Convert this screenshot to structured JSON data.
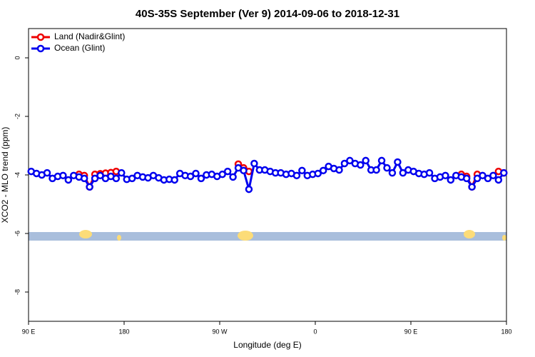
{
  "chart_data": {
    "type": "line",
    "title": "40S-35S September (Ver 9)   2014-09-06 to 2018-12-31",
    "x_label": "Longitude (deg E)",
    "y_label": "XCO2 - MLO trend (ppm)",
    "xlim": [
      90,
      540
    ],
    "xticks": [
      {
        "value": 90,
        "label": "90 E"
      },
      180,
      {
        "value": 270,
        "label": "90 W"
      },
      {
        "value": 360,
        "label": "0"
      },
      {
        "value": 450,
        "label": "90 E"
      },
      {
        "value": 540,
        "label": "180"
      }
    ],
    "ylim": [
      -9,
      1
    ],
    "yticks": [
      0,
      -2,
      -4,
      -6,
      -8
    ],
    "legend": "top-left",
    "x": [
      92.5,
      97.5,
      102.5,
      107.5,
      112.5,
      117.5,
      122.5,
      127.5,
      132.5,
      137.5,
      142.5,
      147.5,
      152.5,
      157.5,
      162.5,
      167.5,
      172.5,
      177.5,
      182.5,
      187.5,
      192.5,
      197.5,
      202.5,
      207.5,
      212.5,
      217.5,
      222.5,
      227.5,
      232.5,
      237.5,
      242.5,
      247.5,
      252.5,
      257.5,
      262.5,
      267.5,
      272.5,
      277.5,
      282.5,
      287.5,
      292.5,
      297.5,
      302.5,
      307.5,
      312.5,
      317.5,
      322.5,
      327.5,
      332.5,
      337.5,
      342.5,
      347.5,
      352.5,
      357.5,
      362.5,
      367.5,
      372.5,
      377.5,
      382.5,
      387.5,
      392.5,
      397.5,
      402.5,
      407.5,
      412.5,
      417.5,
      422.5,
      427.5,
      432.5,
      437.5,
      442.5,
      447.5,
      452.5,
      457.5,
      462.5,
      467.5,
      472.5,
      477.5,
      482.5,
      487.5,
      492.5,
      497.5,
      502.5,
      507.5,
      512.5,
      517.5,
      522.5,
      527.5,
      532.5,
      537.5
    ],
    "series": [
      {
        "name": "Land (Nadir&Glint)",
        "color": "#ee0000",
        "values": [
          null,
          null,
          null,
          null,
          null,
          null,
          null,
          null,
          null,
          -3.98,
          -4.02,
          -4.41,
          -3.98,
          -3.96,
          -3.94,
          -3.92,
          -3.88,
          null,
          null,
          null,
          null,
          null,
          null,
          null,
          null,
          null,
          null,
          null,
          null,
          null,
          null,
          null,
          null,
          null,
          null,
          null,
          null,
          null,
          null,
          -3.63,
          -3.76,
          -3.88,
          null,
          null,
          null,
          null,
          null,
          null,
          null,
          null,
          null,
          null,
          null,
          null,
          null,
          null,
          null,
          null,
          null,
          null,
          null,
          null,
          null,
          null,
          null,
          null,
          null,
          null,
          null,
          null,
          null,
          null,
          null,
          null,
          null,
          null,
          null,
          null,
          null,
          null,
          null,
          -3.98,
          -4.05,
          -4.41,
          -3.98,
          null,
          null,
          null,
          -3.88,
          -3.93
        ]
      },
      {
        "name": "Ocean (Glint)",
        "color": "#0000ee",
        "values": [
          -3.88,
          -3.95,
          -4.0,
          -3.93,
          -4.12,
          -4.05,
          -4.02,
          -4.17,
          -4.02,
          -4.07,
          -4.12,
          -4.41,
          -4.12,
          -4.02,
          -4.12,
          -4.05,
          -4.12,
          -3.93,
          -4.15,
          -4.12,
          -4.02,
          -4.07,
          -4.1,
          -4.02,
          -4.1,
          -4.17,
          -4.15,
          -4.17,
          -3.95,
          -4.02,
          -4.05,
          -3.95,
          -4.12,
          -4.0,
          -3.98,
          -4.05,
          -3.98,
          -3.88,
          -4.07,
          -3.76,
          -3.85,
          -4.49,
          -3.61,
          -3.83,
          -3.83,
          -3.88,
          -3.93,
          -3.93,
          -3.98,
          -3.95,
          -4.02,
          -3.85,
          -4.02,
          -3.98,
          -3.95,
          -3.85,
          -3.71,
          -3.78,
          -3.83,
          -3.61,
          -3.51,
          -3.61,
          -3.66,
          -3.51,
          -3.83,
          -3.83,
          -3.51,
          -3.76,
          -3.93,
          -3.56,
          -3.93,
          -3.83,
          -3.88,
          -3.95,
          -3.98,
          -3.93,
          -4.12,
          -4.07,
          -4.02,
          -4.17,
          -4.02,
          -4.07,
          -4.12,
          -4.41,
          -4.12,
          -4.02,
          -4.12,
          -4.02,
          -4.17,
          -3.93
        ]
      }
    ]
  }
}
